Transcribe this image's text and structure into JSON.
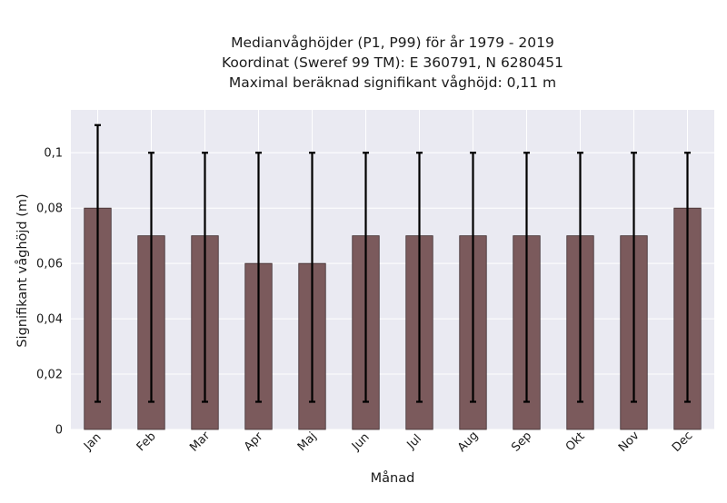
{
  "chart_data": {
    "type": "bar",
    "title_lines": [
      "Medianvåghöjder (P1, P99) för år 1979 - 2019",
      "Koordinat (Sweref 99 TM): E 360791, N 6280451",
      "Maximal beräknad signifikant våghöjd: 0,11 m"
    ],
    "xlabel": "Månad",
    "ylabel": "Signifikant våghöjd (m)",
    "categories": [
      "Jan",
      "Feb",
      "Mar",
      "Apr",
      "Maj",
      "Jun",
      "Jul",
      "Aug",
      "Sep",
      "Okt",
      "Nov",
      "Dec"
    ],
    "values": [
      0.08,
      0.07,
      0.07,
      0.06,
      0.06,
      0.07,
      0.07,
      0.07,
      0.07,
      0.07,
      0.07,
      0.08
    ],
    "p1": [
      0.01,
      0.01,
      0.01,
      0.01,
      0.01,
      0.01,
      0.01,
      0.01,
      0.01,
      0.01,
      0.01,
      0.01
    ],
    "p99": [
      0.11,
      0.1,
      0.1,
      0.1,
      0.1,
      0.1,
      0.1,
      0.1,
      0.1,
      0.1,
      0.1,
      0.1
    ],
    "ylim": [
      0,
      0.1155
    ],
    "yticks": [
      {
        "value": 0,
        "label": "0"
      },
      {
        "value": 0.02,
        "label": "0,02"
      },
      {
        "value": 0.04,
        "label": "0,04"
      },
      {
        "value": 0.06,
        "label": "0,06"
      },
      {
        "value": 0.08,
        "label": "0,08"
      },
      {
        "value": 0.1,
        "label": "0,1"
      }
    ],
    "grid": true,
    "colors": {
      "bar": "#7b5a5c",
      "bar_edge": "#3f2d2f",
      "error_bar": "#000000",
      "plot_background": "#eaeaf2",
      "grid": "#ffffff"
    }
  }
}
